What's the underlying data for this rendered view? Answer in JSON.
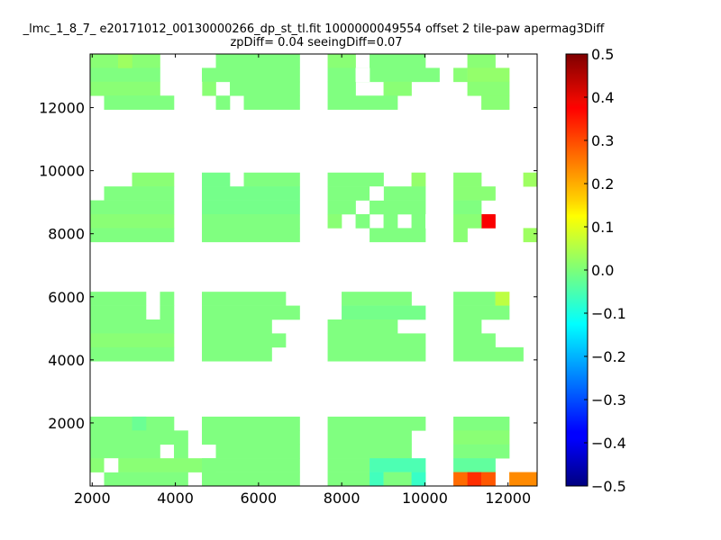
{
  "chart_data": {
    "type": "heatmap",
    "title_line1": "_lmc_1_8_7_ e20171012_00130000266_dp_st_tl.fit 1000000049554 offset 2 tile-paw apermag3Diff",
    "title_line2": "zpDiff= 0.04 seeingDiff=0.07",
    "xlabel": "",
    "ylabel": "",
    "xlim": [
      1950,
      12700
    ],
    "ylim": [
      0,
      13700
    ],
    "xticks": [
      2000,
      4000,
      6000,
      8000,
      10000,
      12000
    ],
    "yticks": [
      2000,
      4000,
      6000,
      8000,
      10000,
      12000
    ],
    "colorbar": {
      "range": [
        -0.5,
        0.5
      ],
      "ticks": [
        0.5,
        0.4,
        0.3,
        0.2,
        0.1,
        0.0,
        -0.1,
        -0.2,
        -0.3,
        -0.4,
        -0.5
      ],
      "tick_labels": [
        "0.5",
        "0.4",
        "0.3",
        "0.2",
        "0.1",
        "0.0",
        "−0.1",
        "−0.2",
        "−0.3",
        "−0.4",
        "−0.5"
      ],
      "colormap": "jet"
    },
    "cell_width": 336,
    "cell_height": 440,
    "value_meaning": "apermag3Diff",
    "cells": [
      {
        "x": 1950,
        "y": 13260,
        "w": 1680,
        "v": 0.01
      },
      {
        "x": 1950,
        "y": 12820,
        "w": 1680,
        "v": 0.0
      },
      {
        "x": 1950,
        "y": 12380,
        "w": 1680,
        "v": 0.01
      },
      {
        "x": 2286,
        "y": 11940,
        "w": 1680,
        "v": 0.0
      },
      {
        "x": 2622,
        "y": 13260,
        "w": 336,
        "v": 0.03
      },
      {
        "x": 4638,
        "y": 12820,
        "w": 2352,
        "v": 0.0
      },
      {
        "x": 4638,
        "y": 12380,
        "w": 336,
        "v": 0.01
      },
      {
        "x": 5310,
        "y": 12380,
        "w": 1680,
        "v": 0.0
      },
      {
        "x": 4974,
        "y": 11940,
        "w": 336,
        "v": 0.0
      },
      {
        "x": 5646,
        "y": 11940,
        "w": 1344,
        "v": 0.0
      },
      {
        "x": 4974,
        "y": 13260,
        "w": 2016,
        "v": 0.0
      },
      {
        "x": 7662,
        "y": 13260,
        "w": 672,
        "v": 0.01
      },
      {
        "x": 8670,
        "y": 13260,
        "w": 1344,
        "v": 0.0
      },
      {
        "x": 7662,
        "y": 12820,
        "w": 2688,
        "v": 0.0
      },
      {
        "x": 7662,
        "y": 12380,
        "w": 672,
        "v": 0.0
      },
      {
        "x": 9006,
        "y": 12380,
        "w": 672,
        "v": 0.01
      },
      {
        "x": 7662,
        "y": 11940,
        "w": 1680,
        "v": 0.0
      },
      {
        "x": 10686,
        "y": 12820,
        "w": 336,
        "v": 0.01
      },
      {
        "x": 11022,
        "y": 13260,
        "w": 672,
        "v": 0.01
      },
      {
        "x": 11022,
        "y": 12820,
        "w": 1008,
        "v": 0.02
      },
      {
        "x": 11022,
        "y": 12380,
        "w": 1008,
        "v": 0.01
      },
      {
        "x": 11358,
        "y": 11940,
        "w": 672,
        "v": 0.01
      },
      {
        "x": 2958,
        "y": 9500,
        "w": 1008,
        "v": 0.01
      },
      {
        "x": 2286,
        "y": 9060,
        "w": 1680,
        "v": 0.0
      },
      {
        "x": 1950,
        "y": 8620,
        "w": 2016,
        "v": 0.0
      },
      {
        "x": 1950,
        "y": 8180,
        "w": 2016,
        "v": 0.01
      },
      {
        "x": 1950,
        "y": 7740,
        "w": 2016,
        "v": 0.0
      },
      {
        "x": 4638,
        "y": 9500,
        "w": 672,
        "v": -0.01
      },
      {
        "x": 5646,
        "y": 9500,
        "w": 1344,
        "v": 0.0
      },
      {
        "x": 4638,
        "y": 9060,
        "w": 2352,
        "v": -0.01
      },
      {
        "x": 4638,
        "y": 8620,
        "w": 2352,
        "v": -0.01
      },
      {
        "x": 4638,
        "y": 8180,
        "w": 2352,
        "v": 0.0
      },
      {
        "x": 4638,
        "y": 7740,
        "w": 2352,
        "v": 0.0
      },
      {
        "x": 7662,
        "y": 9500,
        "w": 1344,
        "v": 0.0
      },
      {
        "x": 9678,
        "y": 9500,
        "w": 336,
        "v": 0.02
      },
      {
        "x": 7662,
        "y": 9060,
        "w": 2352,
        "v": 0.0
      },
      {
        "x": 7662,
        "y": 8620,
        "w": 672,
        "v": 0.0
      },
      {
        "x": 8670,
        "y": 8620,
        "w": 1344,
        "v": 0.0
      },
      {
        "x": 7662,
        "y": 8180,
        "w": 336,
        "v": 0.01
      },
      {
        "x": 8334,
        "y": 8180,
        "w": 336,
        "v": 0.0
      },
      {
        "x": 9006,
        "y": 8180,
        "w": 336,
        "v": 0.0
      },
      {
        "x": 9678,
        "y": 8180,
        "w": 336,
        "v": 0.0
      },
      {
        "x": 8670,
        "y": 7740,
        "w": 1344,
        "v": 0.0
      },
      {
        "x": 10686,
        "y": 9500,
        "w": 672,
        "v": 0.01
      },
      {
        "x": 10686,
        "y": 9060,
        "w": 1008,
        "v": 0.01
      },
      {
        "x": 10686,
        "y": 8620,
        "w": 672,
        "v": 0.0
      },
      {
        "x": 11358,
        "y": 8180,
        "w": 336,
        "v": 0.38
      },
      {
        "x": 10686,
        "y": 8180,
        "w": 672,
        "v": 0.01
      },
      {
        "x": 10686,
        "y": 7740,
        "w": 336,
        "v": 0.01
      },
      {
        "x": 12366,
        "y": 9500,
        "w": 336,
        "v": 0.03
      },
      {
        "x": 12366,
        "y": 7740,
        "w": 336,
        "v": 0.03
      },
      {
        "x": 1950,
        "y": 5720,
        "w": 1344,
        "v": 0.0
      },
      {
        "x": 3630,
        "y": 5720,
        "w": 336,
        "v": 0.0
      },
      {
        "x": 1950,
        "y": 5280,
        "w": 1344,
        "v": 0.0
      },
      {
        "x": 3630,
        "y": 5280,
        "w": 336,
        "v": 0.0
      },
      {
        "x": 1950,
        "y": 4840,
        "w": 2016,
        "v": 0.0
      },
      {
        "x": 1950,
        "y": 4400,
        "w": 2016,
        "v": 0.01
      },
      {
        "x": 1950,
        "y": 3960,
        "w": 2016,
        "v": 0.0
      },
      {
        "x": 4638,
        "y": 5720,
        "w": 2016,
        "v": 0.0
      },
      {
        "x": 4638,
        "y": 5280,
        "w": 2352,
        "v": 0.0
      },
      {
        "x": 4638,
        "y": 4840,
        "w": 1680,
        "v": 0.0
      },
      {
        "x": 4638,
        "y": 4400,
        "w": 2016,
        "v": 0.0
      },
      {
        "x": 4638,
        "y": 3960,
        "w": 1680,
        "v": 0.0
      },
      {
        "x": 7998,
        "y": 5720,
        "w": 1680,
        "v": 0.0
      },
      {
        "x": 7998,
        "y": 5280,
        "w": 2016,
        "v": -0.01
      },
      {
        "x": 7662,
        "y": 4840,
        "w": 1680,
        "v": 0.0
      },
      {
        "x": 7662,
        "y": 4400,
        "w": 2352,
        "v": 0.0
      },
      {
        "x": 7662,
        "y": 3960,
        "w": 2352,
        "v": 0.0
      },
      {
        "x": 10686,
        "y": 5720,
        "w": 1008,
        "v": 0.0
      },
      {
        "x": 11694,
        "y": 5720,
        "w": 336,
        "v": 0.06
      },
      {
        "x": 10686,
        "y": 5280,
        "w": 1344,
        "v": 0.0
      },
      {
        "x": 10686,
        "y": 4840,
        "w": 672,
        "v": 0.0
      },
      {
        "x": 10686,
        "y": 4400,
        "w": 1008,
        "v": 0.0
      },
      {
        "x": 10686,
        "y": 3960,
        "w": 1680,
        "v": 0.0
      },
      {
        "x": 1950,
        "y": 1760,
        "w": 2016,
        "v": 0.0
      },
      {
        "x": 2958,
        "y": 1760,
        "w": 336,
        "v": -0.02
      },
      {
        "x": 1950,
        "y": 1320,
        "w": 2352,
        "v": 0.0
      },
      {
        "x": 3294,
        "y": 1320,
        "w": 336,
        "v": 0.0
      },
      {
        "x": 1950,
        "y": 880,
        "w": 1680,
        "v": 0.0
      },
      {
        "x": 3966,
        "y": 880,
        "w": 336,
        "v": 0.0
      },
      {
        "x": 1950,
        "y": 440,
        "w": 3024,
        "v": 0.01
      },
      {
        "x": 2286,
        "y": 0,
        "w": 2016,
        "v": 0.0
      },
      {
        "x": 4638,
        "y": 1760,
        "w": 2352,
        "v": 0.0
      },
      {
        "x": 4638,
        "y": 1320,
        "w": 2352,
        "v": 0.0
      },
      {
        "x": 4974,
        "y": 880,
        "w": 2016,
        "v": 0.0
      },
      {
        "x": 4638,
        "y": 440,
        "w": 2352,
        "v": 0.0
      },
      {
        "x": 4638,
        "y": 0,
        "w": 2352,
        "v": 0.0
      },
      {
        "x": 7662,
        "y": 1760,
        "w": 2352,
        "v": 0.0
      },
      {
        "x": 7662,
        "y": 1320,
        "w": 2016,
        "v": 0.0
      },
      {
        "x": 7662,
        "y": 880,
        "w": 2016,
        "v": 0.0
      },
      {
        "x": 7662,
        "y": 440,
        "w": 1008,
        "v": 0.0
      },
      {
        "x": 7662,
        "y": 0,
        "w": 1008,
        "v": 0.0
      },
      {
        "x": 8670,
        "y": 440,
        "w": 1344,
        "v": -0.05
      },
      {
        "x": 8670,
        "y": 0,
        "w": 336,
        "v": -0.06
      },
      {
        "x": 9006,
        "y": 0,
        "w": 1008,
        "v": 0.0
      },
      {
        "x": 9678,
        "y": 0,
        "w": 336,
        "v": -0.07
      },
      {
        "x": 10686,
        "y": 1760,
        "w": 1344,
        "v": 0.0
      },
      {
        "x": 10686,
        "y": 1320,
        "w": 1344,
        "v": 0.01
      },
      {
        "x": 10686,
        "y": 880,
        "w": 1344,
        "v": 0.0
      },
      {
        "x": 10686,
        "y": 440,
        "w": 1008,
        "v": -0.03
      },
      {
        "x": 10686,
        "y": 0,
        "w": 336,
        "v": 0.27
      },
      {
        "x": 11022,
        "y": 0,
        "w": 336,
        "v": 0.33
      },
      {
        "x": 11358,
        "y": 0,
        "w": 336,
        "v": 0.29
      },
      {
        "x": 12030,
        "y": 0,
        "w": 672,
        "v": 0.24
      }
    ],
    "holes": [
      {
        "x": 4302,
        "y": 12380,
        "w": 336,
        "v": null
      },
      {
        "x": 8334,
        "y": 12820,
        "w": 336,
        "v": null
      },
      {
        "x": 11694,
        "y": 8620,
        "w": 336,
        "v": null
      },
      {
        "x": 2286,
        "y": 440,
        "w": 336,
        "v": null
      },
      {
        "x": 8670,
        "y": 9060,
        "w": 336,
        "v": null
      },
      {
        "x": 10014,
        "y": 8180,
        "w": 336,
        "v": null
      }
    ],
    "background_color": "#ffffff"
  }
}
